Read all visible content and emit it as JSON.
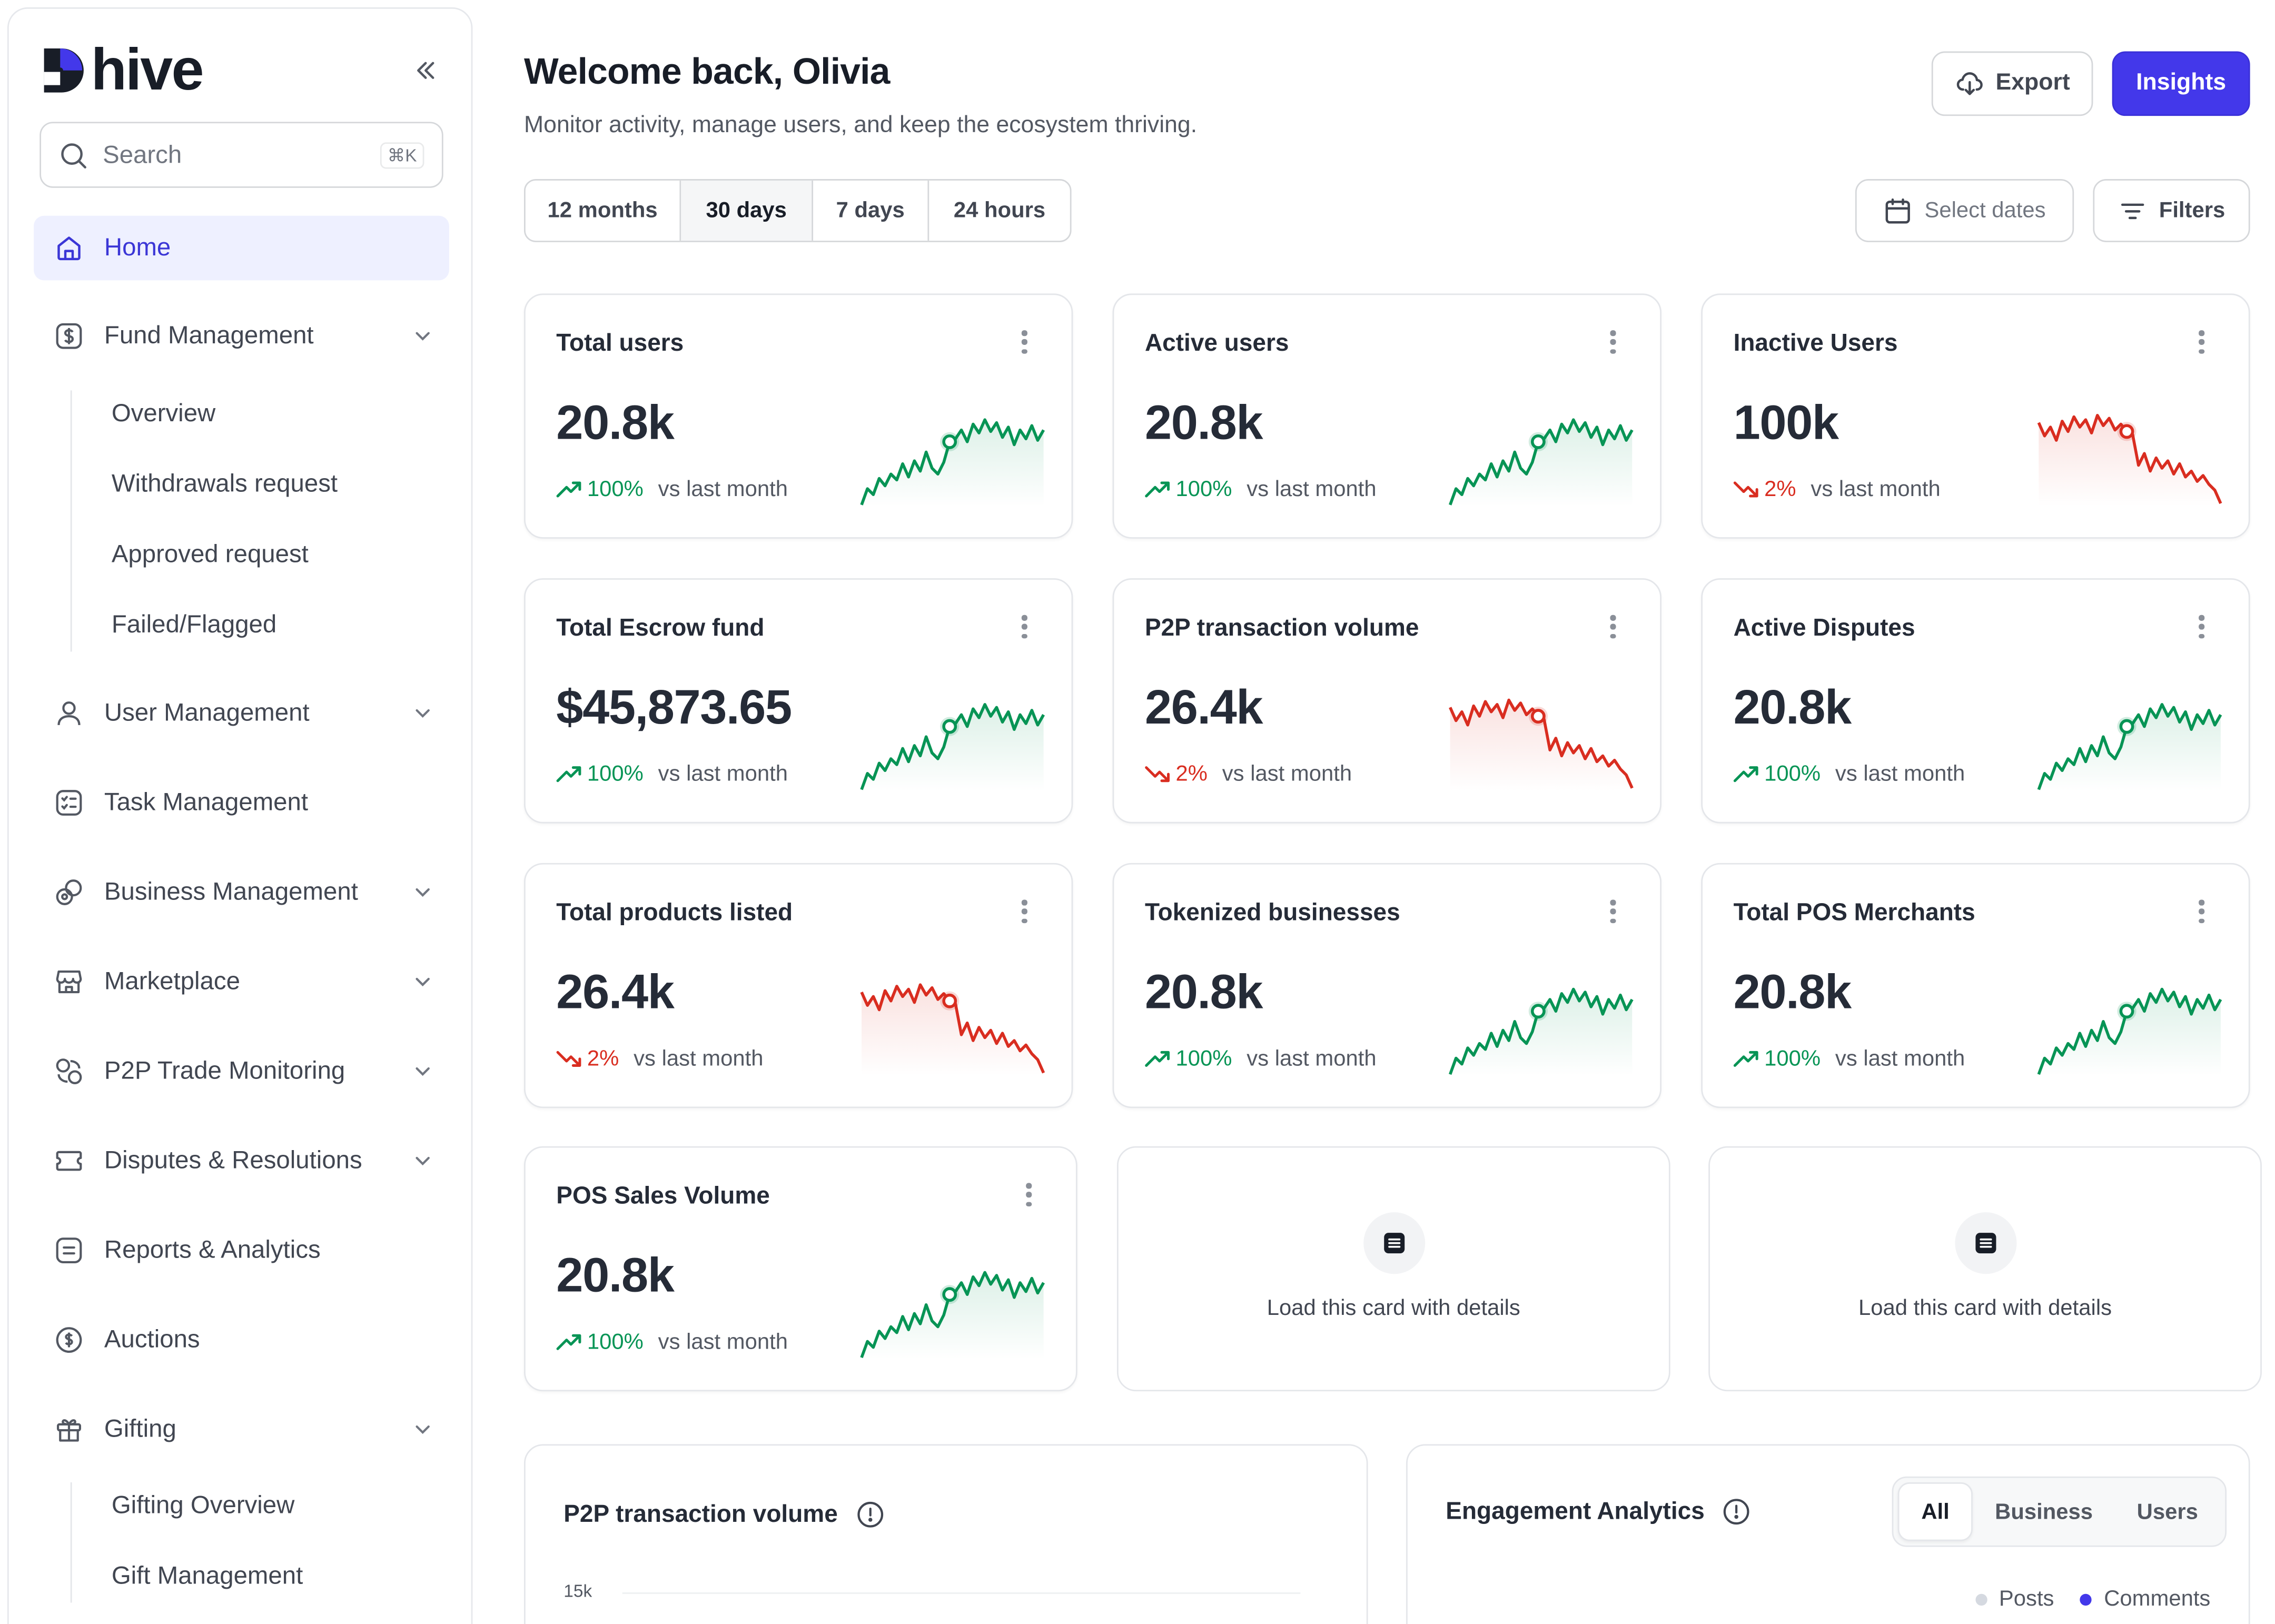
{
  "app": {
    "logo_text": "hive"
  },
  "search": {
    "placeholder": "Search",
    "shortcut": "⌘K"
  },
  "sidebar": {
    "items": [
      {
        "label": "Home",
        "icon": "home-icon",
        "active": true
      },
      {
        "label": "Fund Management",
        "icon": "dollar-square-icon",
        "expandable": true
      },
      {
        "label": "User Management",
        "icon": "user-icon",
        "expandable": true
      },
      {
        "label": "Task Management",
        "icon": "checklist-icon"
      },
      {
        "label": "Business Management",
        "icon": "business-icon",
        "expandable": true
      },
      {
        "label": "Marketplace",
        "icon": "store-icon",
        "expandable": true
      },
      {
        "label": "P2P Trade Monitoring",
        "icon": "trade-icon",
        "expandable": true
      },
      {
        "label": "Disputes & Resolutions",
        "icon": "ticket-icon",
        "expandable": true
      },
      {
        "label": "Reports & Analytics",
        "icon": "report-icon"
      },
      {
        "label": "Auctions",
        "icon": "auction-coin-icon"
      },
      {
        "label": "Gifting",
        "icon": "gift-icon",
        "expandable": true
      }
    ],
    "fund_sub": [
      "Overview",
      "Withdrawals request",
      "Approved request",
      "Failed/Flagged"
    ],
    "gifting_sub": [
      "Gifting Overview",
      "Gift Management"
    ]
  },
  "header": {
    "title": "Welcome back, Olivia",
    "subtitle": "Monitor activity, manage users, and keep the ecosystem thriving.",
    "export_label": "Export",
    "insights_label": "Insights",
    "ranges": [
      "12 months",
      "30 days",
      "7 days",
      "24 hours"
    ],
    "active_range": "30 days",
    "select_dates_label": "Select dates",
    "filters_label": "Filters"
  },
  "colors": {
    "accent": "#4338ea",
    "up": "#079455",
    "down": "#d92d20"
  },
  "cards": [
    {
      "title": "Total users",
      "value": "20.8k",
      "pct": "100%",
      "dir": "up",
      "compare": "vs last month"
    },
    {
      "title": "Active users",
      "value": "20.8k",
      "pct": "100%",
      "dir": "up",
      "compare": "vs last month"
    },
    {
      "title": "Inactive Users",
      "value": "100k",
      "pct": "2%",
      "dir": "down",
      "compare": "vs last month"
    },
    {
      "title": "Total Escrow fund",
      "value": "$45,873.65",
      "pct": "100%",
      "dir": "up",
      "compare": "vs last month"
    },
    {
      "title": "P2P transaction volume",
      "value": "26.4k",
      "pct": "2%",
      "dir": "down",
      "compare": "vs last month"
    },
    {
      "title": "Active Disputes",
      "value": "20.8k",
      "pct": "100%",
      "dir": "up",
      "compare": "vs last month"
    },
    {
      "title": "Total products listed",
      "value": "26.4k",
      "pct": "2%",
      "dir": "down",
      "compare": "vs last month"
    },
    {
      "title": "Tokenized businesses",
      "value": "20.8k",
      "pct": "100%",
      "dir": "up",
      "compare": "vs last month"
    },
    {
      "title": "Total POS Merchants",
      "value": "20.8k",
      "pct": "100%",
      "dir": "up",
      "compare": "vs last month"
    },
    {
      "title": "POS Sales Volume",
      "value": "20.8k",
      "pct": "100%",
      "dir": "up",
      "compare": "vs last month"
    }
  ],
  "placeholders": [
    {
      "text": "Load this card with details"
    },
    {
      "text": "Load this card with details"
    }
  ],
  "p2p_panel": {
    "title": "P2P transaction volume",
    "ytick": "15k"
  },
  "engagement_panel": {
    "title": "Engagement Analytics",
    "tabs": [
      "All",
      "Business",
      "Users"
    ],
    "active_tab": "All",
    "legend": [
      {
        "label": "Posts",
        "color": "#d5d9e0"
      },
      {
        "label": "Comments",
        "color": "#4338ea"
      }
    ]
  }
}
